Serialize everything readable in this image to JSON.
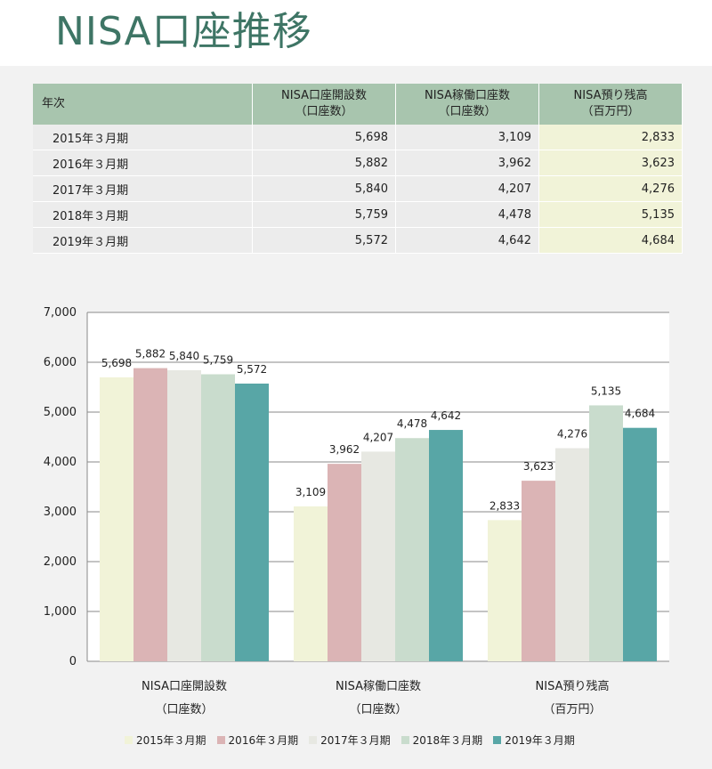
{
  "page": {
    "title": "NISA口座推移"
  },
  "table": {
    "headers": [
      {
        "line1": "年次",
        "line2": ""
      },
      {
        "line1": "NISA口座開設数",
        "line2": "（口座数）"
      },
      {
        "line1": "NISA稼働口座数",
        "line2": "（口座数）"
      },
      {
        "line1": "NISA預り残高",
        "line2": "（百万円）"
      }
    ],
    "rows": [
      {
        "year": "2015年３月期",
        "v1": "5,698",
        "v2": "3,109",
        "v3": "2,833"
      },
      {
        "year": "2016年３月期",
        "v1": "5,882",
        "v2": "3,962",
        "v3": "3,623"
      },
      {
        "year": "2017年３月期",
        "v1": "5,840",
        "v2": "4,207",
        "v3": "4,276"
      },
      {
        "year": "2018年３月期",
        "v1": "5,759",
        "v2": "4,478",
        "v3": "5,135"
      },
      {
        "year": "2019年３月期",
        "v1": "5,572",
        "v2": "4,642",
        "v3": "4,684"
      }
    ]
  },
  "chart_data": {
    "type": "bar",
    "categories": [
      {
        "line1": "NISA口座開設数",
        "line2": "（口座数）"
      },
      {
        "line1": "NISA稼働口座数",
        "line2": "（口座数）"
      },
      {
        "line1": "NISA預り残高",
        "line2": "（百万円）"
      }
    ],
    "series": [
      {
        "name": "2015年３月期",
        "color": "#f1f3d8",
        "values": [
          5698,
          3109,
          2833
        ]
      },
      {
        "name": "2016年３月期",
        "color": "#dbb4b5",
        "values": [
          5882,
          3962,
          3623
        ]
      },
      {
        "name": "2017年３月期",
        "color": "#e7e8e2",
        "values": [
          5840,
          4207,
          4276
        ]
      },
      {
        "name": "2018年３月期",
        "color": "#c9dccd",
        "values": [
          5759,
          4478,
          5135
        ]
      },
      {
        "name": "2019年３月期",
        "color": "#58a6a6",
        "values": [
          5572,
          4642,
          4684
        ]
      }
    ],
    "ylim": [
      0,
      7000
    ],
    "yticks": [
      0,
      1000,
      2000,
      3000,
      4000,
      5000,
      6000,
      7000
    ],
    "ytick_labels": [
      "0",
      "1,000",
      "2,000",
      "3,000",
      "4,000",
      "5,000",
      "6,000",
      "7,000"
    ],
    "data_labels": [
      [
        "5,698",
        "3,109",
        "2,833"
      ],
      [
        "5,882",
        "3,962",
        "3,623"
      ],
      [
        "5,840",
        "4,207",
        "4,276"
      ],
      [
        "5,759",
        "4,478",
        "5,135"
      ],
      [
        "5,572",
        "4,642",
        "4,684"
      ]
    ],
    "grid": true,
    "legend_position": "bottom"
  }
}
